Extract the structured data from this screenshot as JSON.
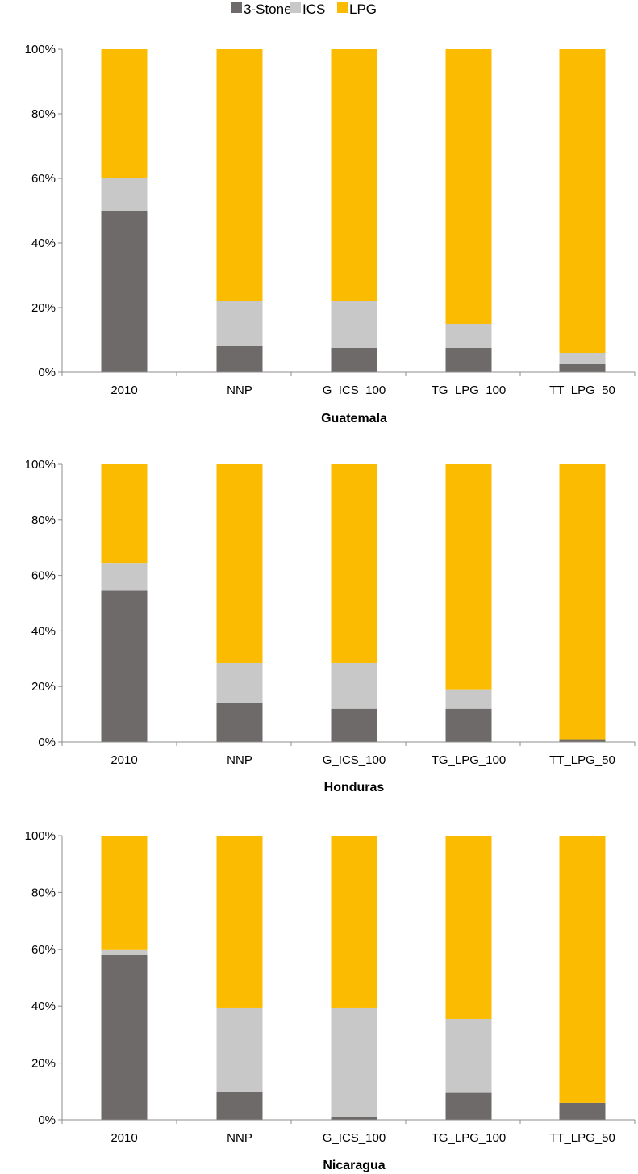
{
  "colors": {
    "3-Stone": "#6f6a6a",
    "ICS": "#c8c8c8",
    "LPG": "#fbbb00",
    "axis": "#8c8c8c"
  },
  "legend": [
    "3-Stone",
    "ICS",
    "LPG"
  ],
  "chart_data": [
    {
      "type": "bar",
      "stacked": "percent",
      "title": "Guatemala",
      "categories": [
        "2010",
        "NNP",
        "G_ICS_100",
        "TG_LPG_100",
        "TT_LPG_50"
      ],
      "series": [
        {
          "name": "3-Stone",
          "values": [
            50,
            8,
            7.5,
            7.5,
            2.5
          ]
        },
        {
          "name": "ICS",
          "values": [
            10,
            14,
            14.5,
            7.5,
            3.5
          ]
        },
        {
          "name": "LPG",
          "values": [
            40,
            78,
            78,
            85,
            94
          ]
        }
      ],
      "yticks": [
        "0%",
        "20%",
        "40%",
        "60%",
        "80%",
        "100%"
      ],
      "ylim": [
        0,
        100
      ],
      "grid": false,
      "legend_position": "top"
    },
    {
      "type": "bar",
      "stacked": "percent",
      "title": "Honduras",
      "categories": [
        "2010",
        "NNP",
        "G_ICS_100",
        "TG_LPG_100",
        "TT_LPG_50"
      ],
      "series": [
        {
          "name": "3-Stone",
          "values": [
            54.5,
            14,
            12,
            12,
            1
          ]
        },
        {
          "name": "ICS",
          "values": [
            10,
            14.5,
            16.5,
            7,
            0
          ]
        },
        {
          "name": "LPG",
          "values": [
            35.5,
            71.5,
            71.5,
            81,
            99
          ]
        }
      ],
      "yticks": [
        "0%",
        "20%",
        "40%",
        "60%",
        "80%",
        "100%"
      ],
      "ylim": [
        0,
        100
      ],
      "grid": false
    },
    {
      "type": "bar",
      "stacked": "percent",
      "title": "Nicaragua",
      "categories": [
        "2010",
        "NNP",
        "G_ICS_100",
        "TG_LPG_100",
        "TT_LPG_50"
      ],
      "series": [
        {
          "name": "3-Stone",
          "values": [
            58,
            10,
            1,
            9.5,
            6
          ]
        },
        {
          "name": "ICS",
          "values": [
            2,
            29.5,
            38.5,
            26,
            0
          ]
        },
        {
          "name": "LPG",
          "values": [
            40,
            60.5,
            60.5,
            64.5,
            94
          ]
        }
      ],
      "yticks": [
        "0%",
        "20%",
        "40%",
        "60%",
        "80%",
        "100%"
      ],
      "ylim": [
        0,
        100
      ],
      "grid": false
    }
  ]
}
